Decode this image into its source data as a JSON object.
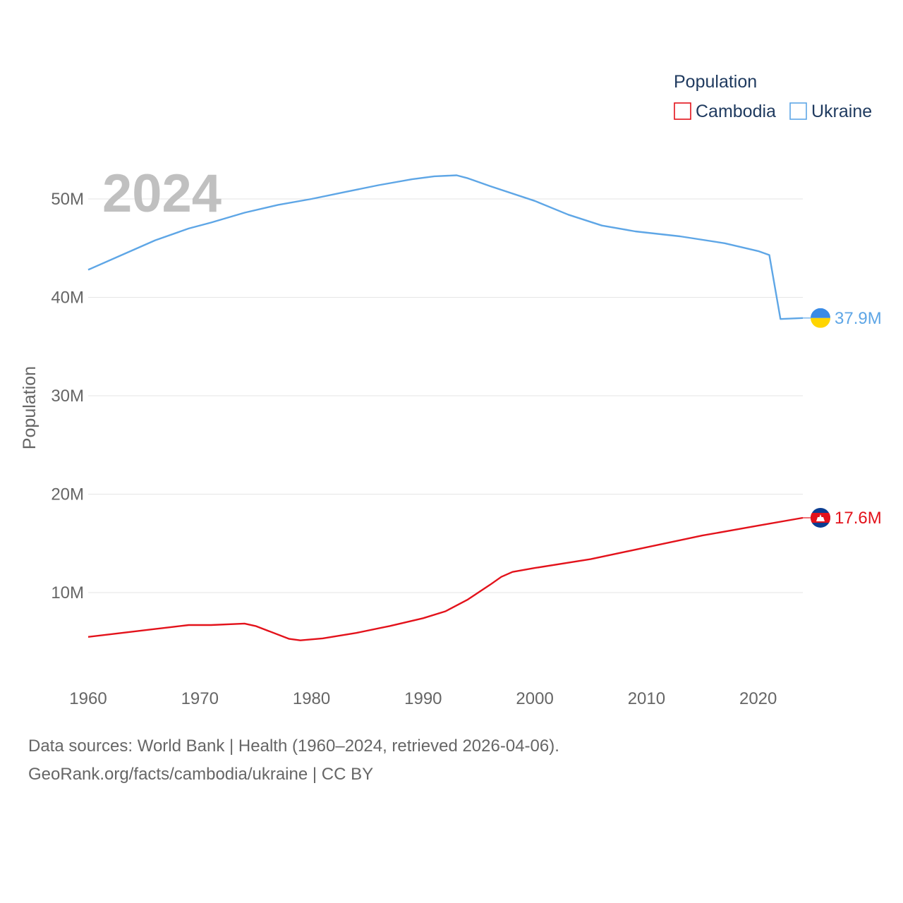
{
  "chart_data": {
    "type": "line",
    "year_overlay": "2024",
    "ylabel": "Population",
    "legend": {
      "title": "Population",
      "placement": "top-right"
    },
    "x_range": [
      1960,
      2024
    ],
    "ylim": [
      3000000,
      55000000
    ],
    "y_ticks": [
      {
        "value": 10000000,
        "label": "10M"
      },
      {
        "value": 20000000,
        "label": "20M"
      },
      {
        "value": 30000000,
        "label": "30M"
      },
      {
        "value": 40000000,
        "label": "40M"
      },
      {
        "value": 50000000,
        "label": "50M"
      }
    ],
    "x_ticks": [
      {
        "value": 1960,
        "label": "1960"
      },
      {
        "value": 1970,
        "label": "1970"
      },
      {
        "value": 1980,
        "label": "1980"
      },
      {
        "value": 1990,
        "label": "1990"
      },
      {
        "value": 2000,
        "label": "2000"
      },
      {
        "value": 2010,
        "label": "2010"
      },
      {
        "value": 2020,
        "label": "2020"
      }
    ],
    "series": [
      {
        "name": "Cambodia",
        "color": "#e3121b",
        "end_label": "17.6M",
        "flag_icon": "cambodia-flag-icon",
        "points": [
          [
            1960,
            5.5
          ],
          [
            1963,
            5.9
          ],
          [
            1966,
            6.3
          ],
          [
            1969,
            6.7
          ],
          [
            1971,
            6.7
          ],
          [
            1974,
            6.85
          ],
          [
            1975,
            6.6
          ],
          [
            1978,
            5.3
          ],
          [
            1979,
            5.15
          ],
          [
            1981,
            5.35
          ],
          [
            1984,
            5.9
          ],
          [
            1987,
            6.6
          ],
          [
            1990,
            7.4
          ],
          [
            1992,
            8.1
          ],
          [
            1994,
            9.3
          ],
          [
            1996,
            10.8
          ],
          [
            1997,
            11.6
          ],
          [
            1998,
            12.1
          ],
          [
            2000,
            12.5
          ],
          [
            2005,
            13.4
          ],
          [
            2010,
            14.6
          ],
          [
            2015,
            15.8
          ],
          [
            2020,
            16.8
          ],
          [
            2024,
            17.6
          ]
        ]
      },
      {
        "name": "Ukraine",
        "color": "#5ea6e6",
        "end_label": "37.9M",
        "flag_icon": "ukraine-flag-icon",
        "points": [
          [
            1960,
            42.8
          ],
          [
            1963,
            44.3
          ],
          [
            1966,
            45.8
          ],
          [
            1969,
            47.0
          ],
          [
            1971,
            47.6
          ],
          [
            1974,
            48.6
          ],
          [
            1977,
            49.4
          ],
          [
            1980,
            50.0
          ],
          [
            1983,
            50.7
          ],
          [
            1986,
            51.4
          ],
          [
            1989,
            52.0
          ],
          [
            1991,
            52.3
          ],
          [
            1993,
            52.4
          ],
          [
            1994,
            52.1
          ],
          [
            1996,
            51.3
          ],
          [
            2000,
            49.8
          ],
          [
            2003,
            48.4
          ],
          [
            2006,
            47.3
          ],
          [
            2009,
            46.7
          ],
          [
            2013,
            46.2
          ],
          [
            2017,
            45.5
          ],
          [
            2020,
            44.7
          ],
          [
            2021,
            44.3
          ],
          [
            2022,
            37.8
          ],
          [
            2024,
            37.9
          ]
        ]
      }
    ]
  },
  "footer": {
    "source_line": "Data sources: World Bank | Health (1960–2024, retrieved 2026-04-06).",
    "credit_line": "GeoRank.org/facts/cambodia/ukraine | CC BY"
  }
}
